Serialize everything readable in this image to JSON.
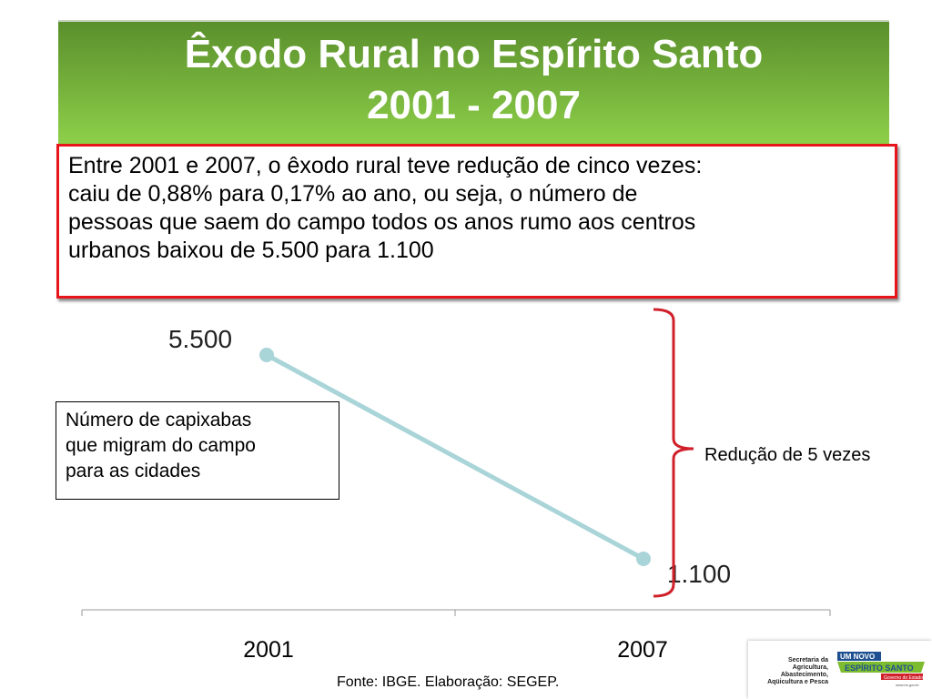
{
  "slide": {
    "title_line1": "Êxodo Rural no Espírito Santo",
    "title_line2": "2001 - 2007",
    "info_lines": [
      "Entre 2001 e 2007, o êxodo rural teve redução de cinco vezes:",
      "caiu de 0,88% para 0,17% ao ano, ou seja, o número de",
      "pessoas que saem do campo todos os anos rumo aos centros",
      "urbanos baixou de 5.500 para 1.100"
    ],
    "label_lines": [
      "Número de capixabas",
      "que migram do campo",
      "para as cidades"
    ],
    "bracket_label": "Redução de 5 vezes",
    "source": "Fonte: IBGE. Elaboração: SEGEP.",
    "logo": {
      "secretaria": "Secretaria da Agricultura, Abastecimento, Aqüicultura e Pesca",
      "brand_top": "UM NOVO",
      "brand_main": "ESPÍRITO SANTO",
      "brand_sub": "Governo do Estado",
      "url": "www.es.gov.br"
    },
    "colors": {
      "title_green": "#6aa935",
      "box_red": "#e8141b",
      "line": "#a9d4d8",
      "bracket": "#d0202a"
    }
  },
  "chart_data": {
    "type": "line",
    "categories": [
      "2001",
      "2007"
    ],
    "values": [
      5500,
      1100
    ],
    "data_labels": [
      "5.500",
      "1.100"
    ],
    "ylim": [
      0,
      5500
    ],
    "grid": false,
    "legend": "none"
  }
}
